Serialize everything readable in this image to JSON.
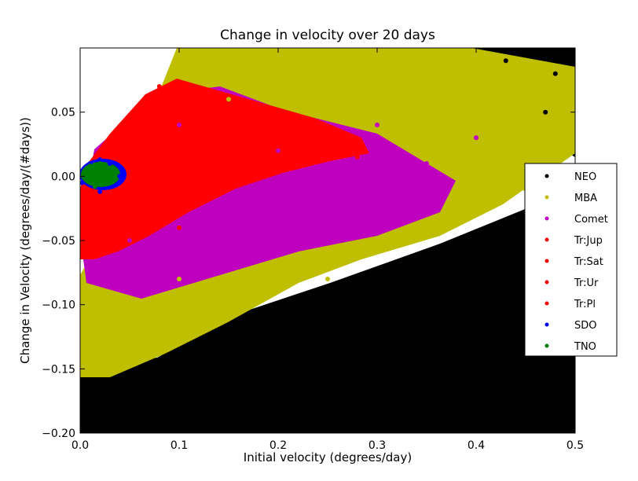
{
  "chart_data": {
    "type": "scatter",
    "title": "Change in velocity over 20 days",
    "xlabel": "Initial velocity (degrees/day)",
    "ylabel": "Change in Velocity (degrees/day/(#days))",
    "xlim": [
      0.0,
      0.5
    ],
    "ylim": [
      -0.2,
      0.1
    ],
    "grid": false,
    "legend_position": "right",
    "x_ticks": [
      0.0,
      0.1,
      0.2,
      0.3,
      0.4,
      0.5
    ],
    "x_tick_labels": [
      "0.0",
      "0.1",
      "0.2",
      "0.3",
      "0.4",
      "0.5"
    ],
    "y_ticks": [
      -0.2,
      -0.15,
      -0.1,
      -0.05,
      0.0,
      0.05
    ],
    "y_tick_labels": [
      "−0.20",
      "−0.15",
      "−0.10",
      "−0.05",
      "0.00",
      "0.05"
    ],
    "series": [
      {
        "name": "NEO",
        "color": "#000000",
        "x": [
          0.05,
          0.1,
          0.15,
          0.2,
          0.25,
          0.3,
          0.35,
          0.4,
          0.45,
          0.48,
          0.47,
          0.43
        ],
        "y": [
          -0.17,
          -0.18,
          -0.16,
          -0.19,
          -0.15,
          -0.17,
          -0.14,
          -0.12,
          -0.06,
          0.08,
          0.05,
          0.09
        ]
      },
      {
        "name": "MBA",
        "color": "#bfbf00",
        "x": [
          0.02,
          0.05,
          0.1,
          0.15,
          0.2,
          0.25,
          0.3,
          0.35,
          0.4,
          0.45
        ],
        "y": [
          -0.12,
          -0.14,
          -0.08,
          0.06,
          0.08,
          -0.08,
          0.07,
          -0.04,
          0.06,
          -0.01
        ]
      },
      {
        "name": "Comet",
        "color": "#bf00bf",
        "x": [
          0.05,
          0.1,
          0.15,
          0.2,
          0.25,
          0.3,
          0.35,
          0.4
        ],
        "y": [
          -0.05,
          0.04,
          -0.03,
          0.02,
          -0.02,
          0.04,
          0.01,
          0.03
        ]
      },
      {
        "name": "Tr:Jup",
        "color": "#ff0000",
        "x": [
          0.02,
          0.05,
          0.08,
          0.1,
          0.15,
          0.2,
          0.25,
          0.28
        ],
        "y": [
          -0.06,
          0.04,
          0.07,
          -0.04,
          0.05,
          0.03,
          0.02,
          0.015
        ]
      },
      {
        "name": "Tr:Sat",
        "color": "#ff0000",
        "x": [],
        "y": []
      },
      {
        "name": "Tr:Ur",
        "color": "#ff0000",
        "x": [],
        "y": []
      },
      {
        "name": "Tr:Pl",
        "color": "#ff0000",
        "x": [],
        "y": []
      },
      {
        "name": "SDO",
        "color": "#0000ff",
        "x": [
          0.002,
          0.01,
          0.02,
          0.03,
          0.04,
          0.02
        ],
        "y": [
          -0.005,
          0.01,
          0.013,
          0.01,
          0.0,
          -0.012
        ]
      },
      {
        "name": "TNO",
        "color": "#008000",
        "x": [
          0.003,
          0.01,
          0.02,
          0.03,
          0.015
        ],
        "y": [
          0.0,
          0.008,
          0.01,
          0.005,
          -0.008
        ]
      }
    ]
  }
}
